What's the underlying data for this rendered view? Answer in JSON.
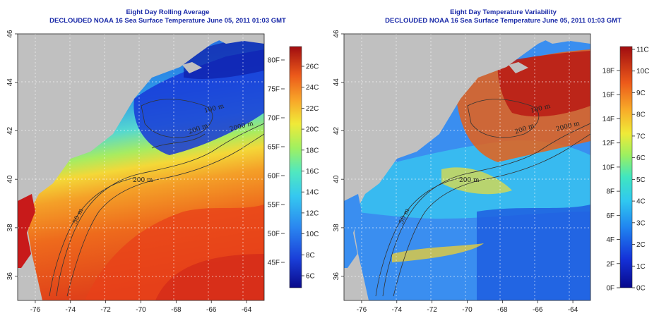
{
  "panels": [
    {
      "title": "Eight Day Rolling Average",
      "subtitle": "DECLOUDED NOAA 16 Sea Surface Temperature June 05, 2011 01:03 GMT",
      "colorbar_F": [
        "45F",
        "50F",
        "55F",
        "60F",
        "65F",
        "70F",
        "75F",
        "80F"
      ],
      "colorbar_C": [
        "6C",
        "8C",
        "10C",
        "12C",
        "14C",
        "16C",
        "18C",
        "20C",
        "22C",
        "24C",
        "26C"
      ]
    },
    {
      "title": "Eight Day Temperature Variability",
      "subtitle": "DECLOUDED NOAA 16 Sea Surface Temperature June 05, 2011 01:03 GMT",
      "colorbar_F": [
        "0F",
        "2F",
        "4F",
        "6F",
        "8F",
        "10F",
        "12F",
        "14F",
        "16F",
        "18F"
      ],
      "colorbar_C": [
        "0C",
        "1C",
        "2C",
        "3C",
        "4C",
        "5C",
        "6C",
        "7C",
        "8C",
        "9C",
        "10C",
        "11C"
      ]
    }
  ],
  "map": {
    "lon_ticks": [
      "-76",
      "-74",
      "-72",
      "-70",
      "-68",
      "-66",
      "-64"
    ],
    "lat_ticks": [
      "36",
      "38",
      "40",
      "42",
      "44",
      "46"
    ],
    "lon_range": [
      -77,
      -63
    ],
    "lat_range": [
      35,
      46
    ],
    "contour_labels": [
      "200 m",
      "2000 m",
      "50 m",
      "200 m",
      "100 m"
    ],
    "land_color": "#c0c0c0",
    "palette": [
      "#08088c",
      "#1230d8",
      "#1f78f0",
      "#2fc4f0",
      "#39e6c8",
      "#7cf07a",
      "#e8f03a",
      "#f8b82a",
      "#f07418",
      "#e0301c",
      "#a80c14"
    ]
  }
}
